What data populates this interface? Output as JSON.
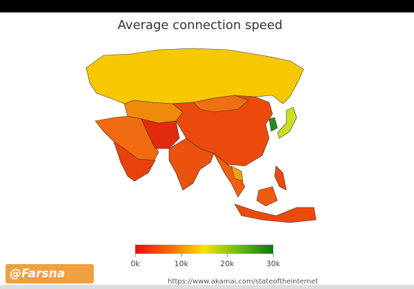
{
  "title": "Average connection speed",
  "legend": {
    "lim": [
      0,
      30000
    ],
    "ticks": [
      {
        "value": 0,
        "label": "0k"
      },
      {
        "value": 10000,
        "label": "10k"
      },
      {
        "value": 20000,
        "label": "20k"
      },
      {
        "value": 30000,
        "label": "30k"
      }
    ],
    "colors": [
      "#e8100c",
      "#f56a00",
      "#f5e400",
      "#6cba18",
      "#0a7a10"
    ]
  },
  "source": "https://www.akamai.com/stateoftheinternet",
  "watermark": "@Farsna"
}
